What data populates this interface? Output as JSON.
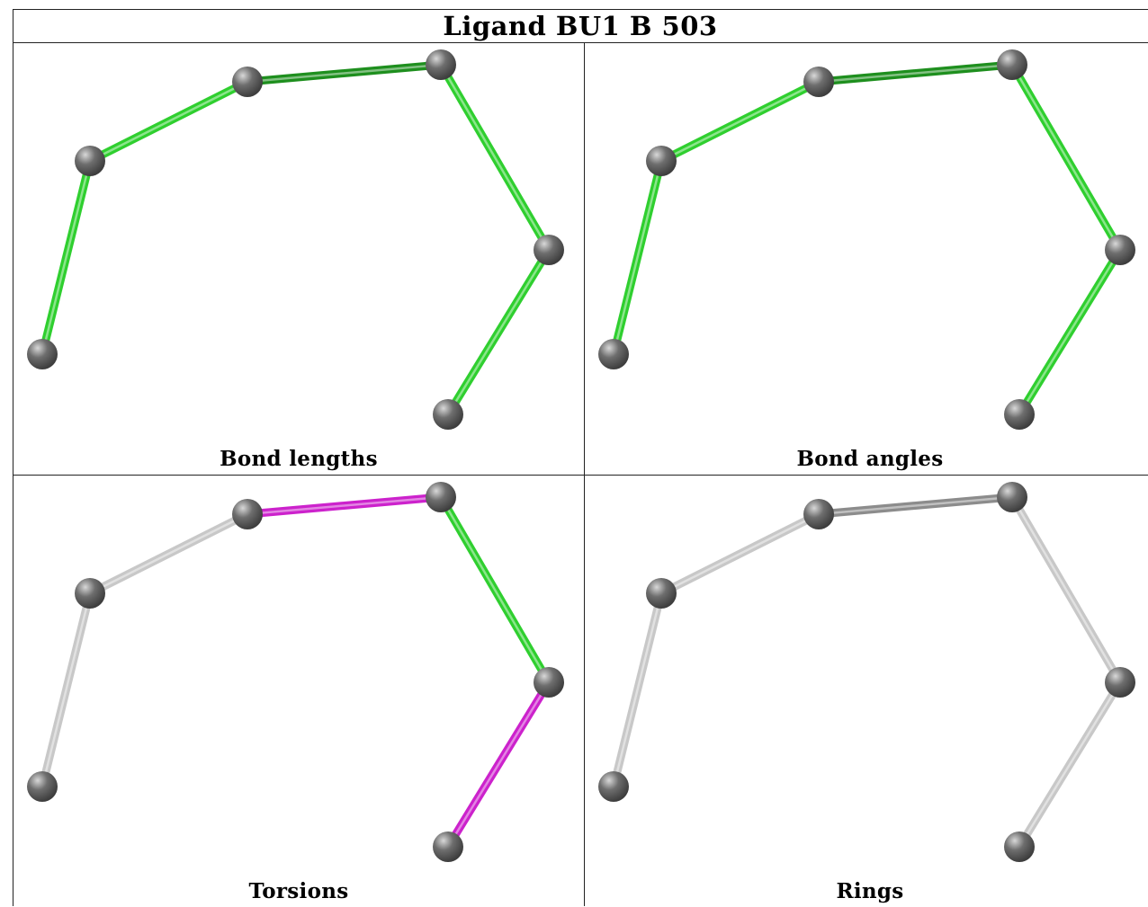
{
  "title": "Ligand BU1 B 503",
  "colors": {
    "bond_green": "#2fcf2f",
    "bond_dark_green": "#1e8f1e",
    "bond_magenta": "#cc22cc",
    "bond_gray": "#c8c8c8",
    "bond_dark_gray": "#8c8c8c",
    "atom": "#6e6e6e"
  },
  "atom_count": 6,
  "bonds": [
    [
      0,
      1
    ],
    [
      1,
      2
    ],
    [
      2,
      3
    ],
    [
      3,
      4
    ],
    [
      4,
      5
    ]
  ],
  "panels": [
    {
      "id": "bond-lengths",
      "caption": "Bond lengths",
      "bond_colors": [
        "green",
        "green",
        "dark_green",
        "green",
        "green"
      ]
    },
    {
      "id": "bond-angles",
      "caption": "Bond angles",
      "bond_colors": [
        "green",
        "green",
        "dark_green",
        "green",
        "green"
      ]
    },
    {
      "id": "torsions",
      "caption": "Torsions",
      "bond_colors": [
        "gray",
        "gray",
        "magenta",
        "green",
        "magenta"
      ]
    },
    {
      "id": "rings",
      "caption": "Rings",
      "bond_colors": [
        "gray",
        "gray",
        "dark_gray",
        "gray",
        "gray"
      ]
    }
  ]
}
